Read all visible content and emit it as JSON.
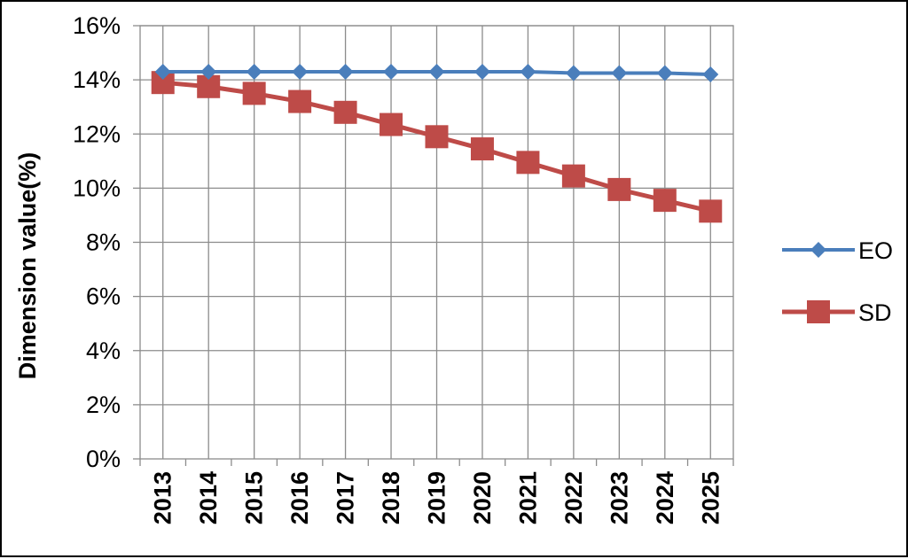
{
  "chart_data": {
    "type": "line",
    "title": "",
    "xlabel": "",
    "ylabel": "Dimension value(%)",
    "categories": [
      "2013",
      "2014",
      "2015",
      "2016",
      "2017",
      "2018",
      "2019",
      "2020",
      "2021",
      "2022",
      "2023",
      "2024",
      "2025"
    ],
    "ylim": [
      0,
      16
    ],
    "y_ticks": [
      "0%",
      "2%",
      "4%",
      "6%",
      "8%",
      "10%",
      "12%",
      "14%",
      "16%"
    ],
    "grid": true,
    "legend_position": "right",
    "series": [
      {
        "name": "EO",
        "marker": "diamond",
        "color": "#4a7ebb",
        "values": [
          14.3,
          14.3,
          14.3,
          14.3,
          14.3,
          14.3,
          14.3,
          14.3,
          14.3,
          14.25,
          14.25,
          14.25,
          14.2
        ]
      },
      {
        "name": "SD",
        "marker": "square",
        "color": "#be4b48",
        "values": [
          13.9,
          13.75,
          13.5,
          13.2,
          12.8,
          12.35,
          11.9,
          11.45,
          10.95,
          10.45,
          9.95,
          9.55,
          9.15
        ]
      }
    ]
  }
}
